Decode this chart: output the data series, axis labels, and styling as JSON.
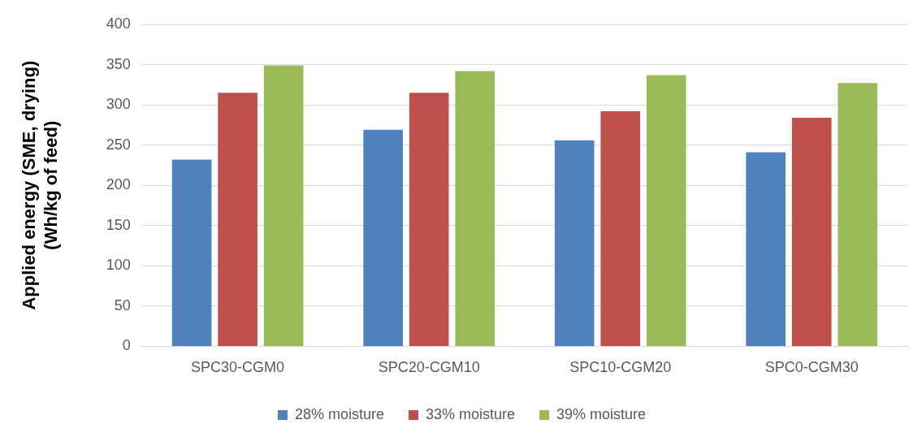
{
  "chart_data": {
    "type": "bar",
    "ylabel": "Applied energy (SME, drying)\n(Wh/kg of feed)",
    "categories": [
      "SPC30-CGM0",
      "SPC20-CGM10",
      "SPC10-CGM20",
      "SPC0-CGM30"
    ],
    "series": [
      {
        "name": "28% moisture",
        "color": "#4f81bd",
        "values": [
          232,
          269,
          256,
          241
        ]
      },
      {
        "name": "33% moisture",
        "color": "#c0504d",
        "values": [
          315,
          315,
          292,
          284
        ]
      },
      {
        "name": "39% moisture",
        "color": "#9bbb59",
        "values": [
          349,
          342,
          337,
          327
        ]
      }
    ],
    "ylim": [
      0,
      400
    ],
    "yticks": [
      0,
      50,
      100,
      150,
      200,
      250,
      300,
      350,
      400
    ],
    "grid": "y",
    "legend": "bottom"
  }
}
